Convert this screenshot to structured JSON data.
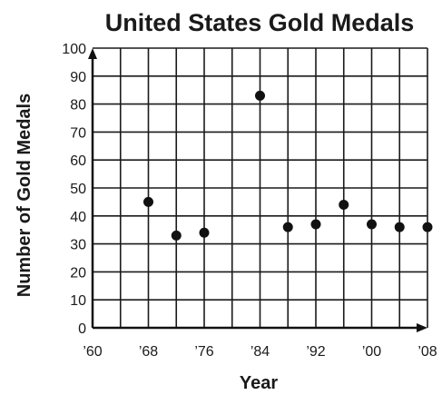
{
  "chart_data": {
    "type": "scatter",
    "title": "United States Gold Medals",
    "xlabel": "Year",
    "ylabel": "Number of Gold Medals",
    "xlim": [
      1960,
      2008
    ],
    "ylim": [
      0,
      100
    ],
    "grid": true,
    "x_ticks": [
      {
        "value": 1960,
        "label": "’60"
      },
      {
        "value": 1968,
        "label": "’68"
      },
      {
        "value": 1976,
        "label": "’76"
      },
      {
        "value": 1984,
        "label": "’84"
      },
      {
        "value": 1992,
        "label": "’92"
      },
      {
        "value": 2000,
        "label": "’00"
      },
      {
        "value": 2008,
        "label": "’08"
      }
    ],
    "y_ticks": [
      0,
      10,
      20,
      30,
      40,
      50,
      60,
      70,
      80,
      90,
      100
    ],
    "points": [
      {
        "x": 1968,
        "y": 45
      },
      {
        "x": 1972,
        "y": 33
      },
      {
        "x": 1976,
        "y": 34
      },
      {
        "x": 1984,
        "y": 83
      },
      {
        "x": 1988,
        "y": 36
      },
      {
        "x": 1992,
        "y": 37
      },
      {
        "x": 1996,
        "y": 44
      },
      {
        "x": 2000,
        "y": 37
      },
      {
        "x": 2004,
        "y": 36
      },
      {
        "x": 2008,
        "y": 36
      }
    ],
    "colors": {
      "point": "#111111",
      "grid": "#1a1a1a",
      "axis": "#111111"
    }
  }
}
